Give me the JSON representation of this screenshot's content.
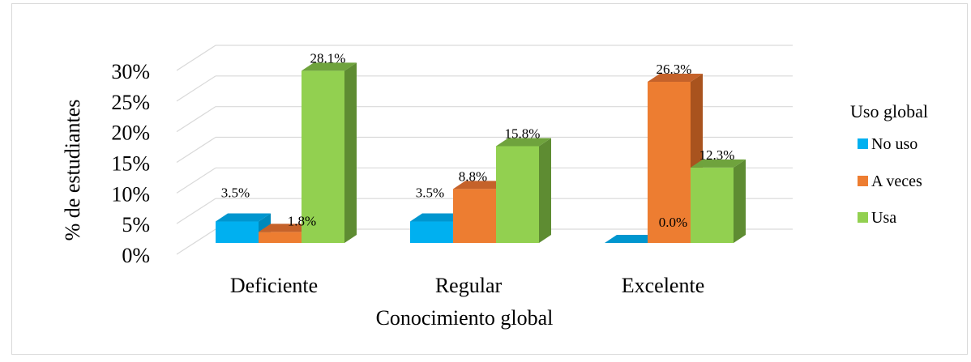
{
  "chart_data": {
    "type": "bar",
    "style": "3d-clustered-column",
    "categories": [
      "Deficiente",
      "Regular",
      "Excelente"
    ],
    "series": [
      {
        "name": "No uso",
        "values": [
          3.5,
          3.5,
          0.0
        ],
        "labels": [
          "3.5%",
          "3.5%",
          "0.0%"
        ],
        "color": "#00B0F0",
        "side_color": "#0089BB",
        "top_color": "#0096CF"
      },
      {
        "name": "A veces",
        "values": [
          1.8,
          8.8,
          26.3
        ],
        "labels": [
          "1.8%",
          "8.8%",
          "26.3%"
        ],
        "color": "#ED7D31",
        "side_color": "#A9531E",
        "top_color": "#C5622A"
      },
      {
        "name": "Usa",
        "values": [
          28.1,
          15.8,
          12.3
        ],
        "labels": [
          "28.1%",
          "15.8%",
          "12.3%"
        ],
        "color": "#92D050",
        "side_color": "#5E8C32",
        "top_color": "#6FA33D"
      }
    ],
    "ylim": [
      0,
      30
    ],
    "yticks": [
      "0%",
      "5%",
      "10%",
      "15%",
      "20%",
      "25%",
      "30%"
    ],
    "xlabel": "Conocimiento global",
    "ylabel": "% de  estudiantes",
    "legend_title": "Uso global",
    "legend_position": "right",
    "grid": true,
    "gridline_color": "#d9d9d9"
  }
}
